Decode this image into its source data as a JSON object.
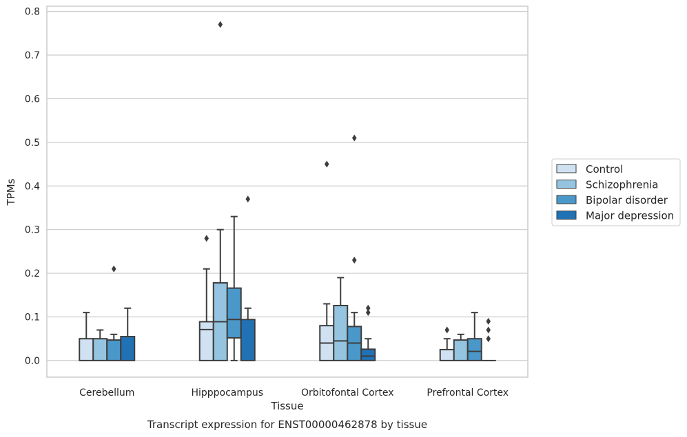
{
  "chart_data": {
    "type": "boxplot",
    "title": "Transcript expression for ENST00000462878 by tissue",
    "xlabel": "Tissue",
    "ylabel": "TPMs",
    "ylim": [
      -0.038,
      0.812
    ],
    "yticks": [
      0.0,
      0.1,
      0.2,
      0.3,
      0.4,
      0.5,
      0.6,
      0.7,
      0.8
    ],
    "ytick_labels": [
      "0.0",
      "0.1",
      "0.2",
      "0.3",
      "0.4",
      "0.5",
      "0.6",
      "0.7",
      "0.8"
    ],
    "grid": true,
    "legend_position": "right",
    "categories": [
      "Cerebellum",
      "Hipppocampus",
      "Orbitofontal Cortex",
      "Prefrontal Cortex"
    ],
    "series": [
      {
        "name": "Control",
        "color": "#d0e1f2",
        "boxes": [
          {
            "whislo": 0.0,
            "q1": 0.0,
            "med": 0.0,
            "q3": 0.05,
            "whishi": 0.11,
            "fliers": []
          },
          {
            "whislo": 0.0,
            "q1": 0.0,
            "med": 0.071,
            "q3": 0.089,
            "whishi": 0.21,
            "fliers": [
              0.28
            ]
          },
          {
            "whislo": 0.0,
            "q1": 0.0,
            "med": 0.04,
            "q3": 0.08,
            "whishi": 0.13,
            "fliers": [
              0.45
            ]
          },
          {
            "whislo": 0.0,
            "q1": 0.0,
            "med": 0.0,
            "q3": 0.025,
            "whishi": 0.05,
            "fliers": [
              0.07
            ]
          }
        ]
      },
      {
        "name": "Schizophrenia",
        "color": "#94c4df",
        "boxes": [
          {
            "whislo": 0.0,
            "q1": 0.0,
            "med": 0.0,
            "q3": 0.05,
            "whishi": 0.07,
            "fliers": []
          },
          {
            "whislo": 0.0,
            "q1": 0.0,
            "med": 0.089,
            "q3": 0.178,
            "whishi": 0.3,
            "fliers": [
              0.77
            ]
          },
          {
            "whislo": 0.0,
            "q1": 0.0,
            "med": 0.045,
            "q3": 0.126,
            "whishi": 0.19,
            "fliers": []
          },
          {
            "whislo": 0.0,
            "q1": 0.0,
            "med": 0.0,
            "q3": 0.047,
            "whishi": 0.06,
            "fliers": []
          }
        ]
      },
      {
        "name": "Bipolar disorder",
        "color": "#4a98c9",
        "boxes": [
          {
            "whislo": 0.0,
            "q1": 0.0,
            "med": 0.0,
            "q3": 0.047,
            "whishi": 0.06,
            "fliers": [
              0.21
            ]
          },
          {
            "whislo": 0.0,
            "q1": 0.052,
            "med": 0.094,
            "q3": 0.166,
            "whishi": 0.33,
            "fliers": []
          },
          {
            "whislo": 0.0,
            "q1": 0.0,
            "med": 0.04,
            "q3": 0.078,
            "whishi": 0.11,
            "fliers": [
              0.23,
              0.51
            ]
          },
          {
            "whislo": 0.0,
            "q1": 0.0,
            "med": 0.021,
            "q3": 0.05,
            "whishi": 0.11,
            "fliers": []
          }
        ]
      },
      {
        "name": "Major depression",
        "color": "#2171b5",
        "boxes": [
          {
            "whislo": 0.0,
            "q1": 0.0,
            "med": 0.0,
            "q3": 0.055,
            "whishi": 0.12,
            "fliers": []
          },
          {
            "whislo": 0.0,
            "q1": 0.0,
            "med": 0.094,
            "q3": 0.094,
            "whishi": 0.12,
            "fliers": [
              0.37
            ]
          },
          {
            "whislo": 0.0,
            "q1": 0.0,
            "med": 0.01,
            "q3": 0.026,
            "whishi": 0.05,
            "fliers": [
              0.11,
              0.12
            ]
          },
          {
            "whislo": 0.0,
            "q1": 0.0,
            "med": 0.0,
            "q3": 0.0,
            "whishi": 0.0,
            "fliers": [
              0.05,
              0.07,
              0.09
            ]
          }
        ]
      }
    ]
  }
}
